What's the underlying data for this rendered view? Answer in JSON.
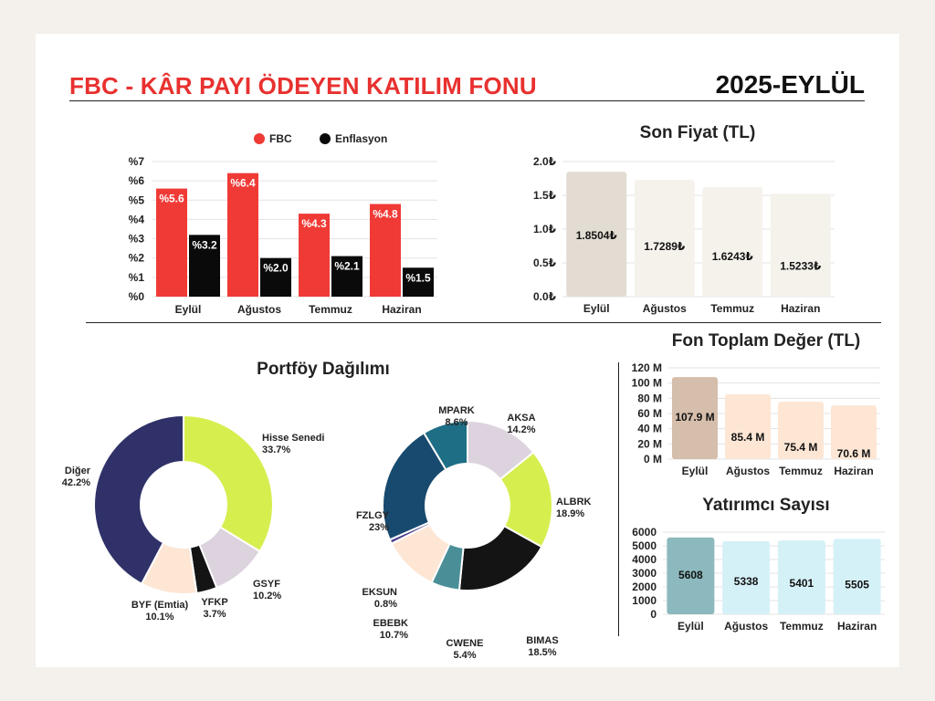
{
  "header": {
    "title": "FBC - KÂR PAYI ÖDEYEN KATILIM FONU",
    "period": "2025-EYLÜL"
  },
  "chart_data": [
    {
      "id": "returns",
      "type": "bar",
      "categories": [
        "Eylül",
        "Ağustos",
        "Temmuz",
        "Haziran"
      ],
      "series": [
        {
          "name": "FBC",
          "values": [
            5.6,
            6.4,
            4.3,
            4.8
          ],
          "labels": [
            "%5.6",
            "%6.4",
            "%4.3",
            "%4.8"
          ],
          "color": "#f03a36"
        },
        {
          "name": "Enflasyon",
          "values": [
            3.2,
            2.0,
            2.1,
            1.5
          ],
          "labels": [
            "%3.2",
            "%2.0",
            "%2.1",
            "%1.5"
          ],
          "color": "#0a0a0a"
        }
      ],
      "ylim": [
        0,
        7
      ],
      "yticks": [
        "%0",
        "%1",
        "%2",
        "%3",
        "%4",
        "%5",
        "%6",
        "%7"
      ],
      "legend": "top",
      "grid": true
    },
    {
      "id": "price",
      "type": "bar",
      "title": "Son Fiyat (TL)",
      "categories": [
        "Eylül",
        "Ağustos",
        "Temmuz",
        "Haziran"
      ],
      "values": [
        1.8504,
        1.7289,
        1.6243,
        1.5233
      ],
      "labels": [
        "1.8504₺",
        "1.7289₺",
        "1.6243₺",
        "1.5233₺"
      ],
      "colors": [
        "#e2dcd2",
        "#f5f2ec",
        "#f5f2ec",
        "#f5f2ec"
      ],
      "ylim": [
        0,
        2.0
      ],
      "yticks": [
        "0.0₺",
        "0.5₺",
        "1.0₺",
        "1.5₺",
        "2.0₺"
      ],
      "grid": true
    },
    {
      "id": "aum",
      "type": "bar",
      "title": "Fon Toplam Değer (TL)",
      "categories": [
        "Eylül",
        "Ağustos",
        "Temmuz",
        "Haziran"
      ],
      "values": [
        107.9,
        85.4,
        75.4,
        70.6
      ],
      "labels": [
        "107.9 M",
        "85.4 M",
        "75.4 M",
        "70.6 M"
      ],
      "colors": [
        "#d5beab",
        "#fde6d4",
        "#fde6d4",
        "#fde6d4"
      ],
      "ylim": [
        0,
        120
      ],
      "yticks": [
        "0 M",
        "20 M",
        "40 M",
        "60 M",
        "80 M",
        "100 M",
        "120 M"
      ],
      "grid": true
    },
    {
      "id": "investors",
      "type": "bar",
      "title": "Yatırımcı Sayısı",
      "categories": [
        "Eylül",
        "Ağustos",
        "Temmuz",
        "Haziran"
      ],
      "values": [
        5608,
        5338,
        5401,
        5505
      ],
      "labels": [
        "5608",
        "5338",
        "5401",
        "5505"
      ],
      "colors": [
        "#8cb9bd",
        "#d5f1f8",
        "#d5f1f8",
        "#d5f1f8"
      ],
      "ylim": [
        0,
        6000
      ],
      "yticks": [
        "0",
        "1000",
        "2000",
        "3000",
        "4000",
        "5000",
        "6000"
      ],
      "grid": true
    },
    {
      "id": "allocation",
      "type": "pie",
      "title": "Portföy Dağılımı",
      "slices": [
        {
          "name": "Hisse Senedi",
          "value": 33.7,
          "label": "33.7%",
          "color": "#d7ee4f"
        },
        {
          "name": "GSYF",
          "value": 10.2,
          "label": "10.2%",
          "color": "#dcd3de"
        },
        {
          "name": "YFKP",
          "value": 3.7,
          "label": "3.7%",
          "color": "#141414"
        },
        {
          "name": "BYF (Emtia)",
          "value": 10.1,
          "label": "10.1%",
          "color": "#fde6d4"
        },
        {
          "name": "Diğer",
          "value": 42.2,
          "label": "42.2%",
          "color": "#2f3168"
        }
      ]
    },
    {
      "id": "holdings",
      "type": "pie",
      "slices": [
        {
          "name": "AKSA",
          "value": 14.2,
          "label": "14.2%",
          "color": "#dcd3de"
        },
        {
          "name": "ALBRK",
          "value": 18.9,
          "label": "18.9%",
          "color": "#d7ee4f"
        },
        {
          "name": "BIMAS",
          "value": 18.5,
          "label": "18.5%",
          "color": "#141414"
        },
        {
          "name": "CWENE",
          "value": 5.4,
          "label": "5.4%",
          "color": "#4a8f98"
        },
        {
          "name": "EBEBK",
          "value": 10.7,
          "label": "10.7%",
          "color": "#fde6d4"
        },
        {
          "name": "EKSUN",
          "value": 0.8,
          "label": "0.8%",
          "color": "#4b3f8a"
        },
        {
          "name": "FZLGY",
          "value": 23,
          "label": "23%",
          "color": "#174a6e"
        },
        {
          "name": "MPARK",
          "value": 8.6,
          "label": "8.6%",
          "color": "#1e6e86"
        }
      ]
    }
  ]
}
